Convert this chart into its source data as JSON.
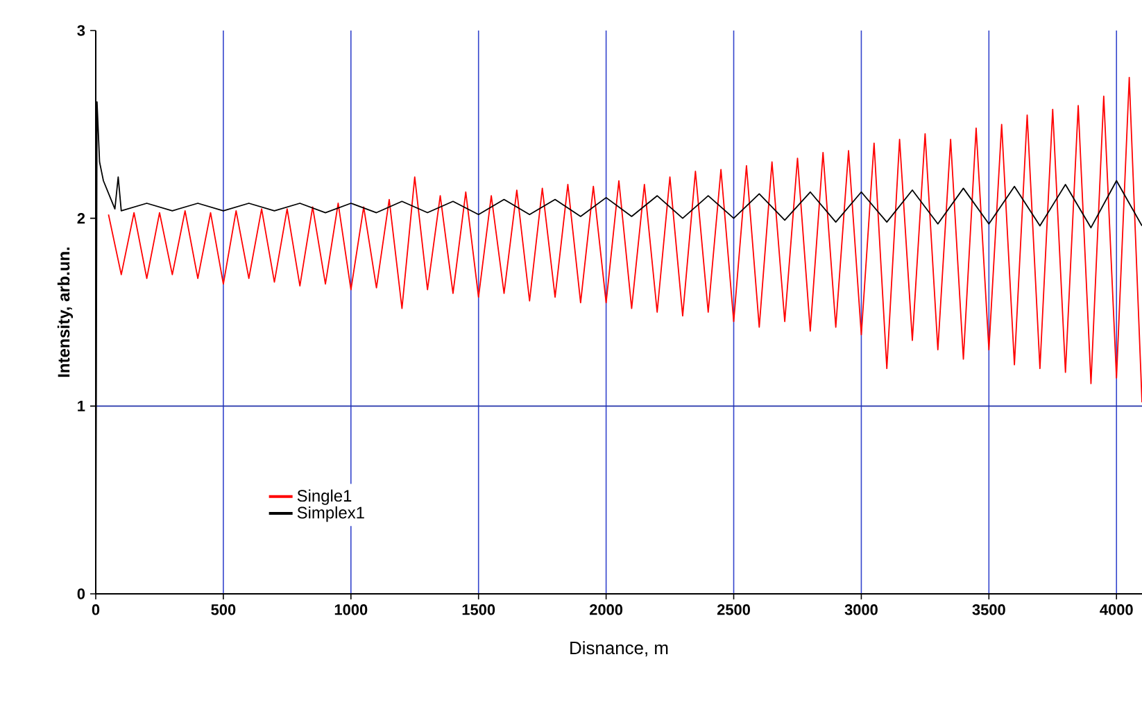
{
  "chart_data": {
    "type": "line",
    "xlabel": "Disnance, m",
    "ylabel": "Intensity, arb.un.",
    "xlim": [
      0,
      4100
    ],
    "ylim": [
      0,
      3
    ],
    "xticks": [
      0,
      500,
      1000,
      1500,
      2000,
      2500,
      3000,
      3500,
      4000
    ],
    "yticks": [
      0,
      1,
      2,
      3
    ],
    "grid": "x",
    "legend": "bottom left",
    "marker": "none",
    "line_style": "solid",
    "ref_lines": [
      {
        "axis": "y",
        "value": 1,
        "color": "#2233aa"
      }
    ],
    "series": [
      {
        "name": "Single1",
        "color": "#ff0000",
        "x": [
          50,
          100,
          150,
          200,
          250,
          300,
          350,
          400,
          450,
          500,
          550,
          600,
          650,
          700,
          750,
          800,
          850,
          900,
          950,
          1000,
          1050,
          1100,
          1150,
          1200,
          1250,
          1300,
          1350,
          1400,
          1450,
          1500,
          1550,
          1600,
          1650,
          1700,
          1750,
          1800,
          1850,
          1900,
          1950,
          2000,
          2050,
          2100,
          2150,
          2200,
          2250,
          2300,
          2350,
          2400,
          2450,
          2500,
          2550,
          2600,
          2650,
          2700,
          2750,
          2800,
          2850,
          2900,
          2950,
          3000,
          3050,
          3100,
          3150,
          3200,
          3250,
          3300,
          3350,
          3400,
          3450,
          3500,
          3550,
          3600,
          3650,
          3700,
          3750,
          3800,
          3850,
          3900,
          3950,
          4000,
          4050,
          4100
        ],
        "values": [
          2.02,
          1.7,
          2.03,
          1.68,
          2.03,
          1.7,
          2.04,
          1.68,
          2.03,
          1.65,
          2.04,
          1.68,
          2.05,
          1.66,
          2.05,
          1.64,
          2.06,
          1.65,
          2.08,
          1.62,
          2.06,
          1.63,
          2.1,
          1.52,
          2.22,
          1.62,
          2.12,
          1.6,
          2.14,
          1.58,
          2.12,
          1.6,
          2.15,
          1.56,
          2.16,
          1.58,
          2.18,
          1.55,
          2.17,
          1.55,
          2.2,
          1.52,
          2.18,
          1.5,
          2.22,
          1.48,
          2.25,
          1.5,
          2.26,
          1.45,
          2.28,
          1.42,
          2.3,
          1.45,
          2.32,
          1.4,
          2.35,
          1.42,
          2.36,
          1.38,
          2.4,
          1.2,
          2.42,
          1.35,
          2.45,
          1.3,
          2.42,
          1.25,
          2.48,
          1.3,
          2.5,
          1.22,
          2.55,
          1.2,
          2.58,
          1.18,
          2.6,
          1.12,
          2.65,
          1.15,
          2.75,
          1.02
        ]
      },
      {
        "name": "Simplex1",
        "color": "#000000",
        "x": [
          0,
          5,
          15,
          30,
          60,
          75,
          88,
          100,
          200,
          300,
          400,
          500,
          600,
          700,
          800,
          900,
          1000,
          1100,
          1200,
          1300,
          1400,
          1500,
          1600,
          1700,
          1800,
          1900,
          2000,
          2100,
          2200,
          2300,
          2400,
          2500,
          2600,
          2700,
          2800,
          2900,
          3000,
          3100,
          3200,
          3300,
          3400,
          3500,
          3600,
          3700,
          3800,
          3900,
          4000,
          4100
        ],
        "values": [
          0,
          2.62,
          2.3,
          2.2,
          2.1,
          2.05,
          2.22,
          2.04,
          2.08,
          2.04,
          2.08,
          2.04,
          2.08,
          2.04,
          2.08,
          2.03,
          2.08,
          2.03,
          2.09,
          2.03,
          2.09,
          2.02,
          2.1,
          2.02,
          2.1,
          2.01,
          2.11,
          2.01,
          2.12,
          2.0,
          2.12,
          2.0,
          2.13,
          1.99,
          2.14,
          1.98,
          2.14,
          1.98,
          2.15,
          1.97,
          2.16,
          1.97,
          2.17,
          1.96,
          2.18,
          1.95,
          2.2,
          1.96
        ]
      }
    ]
  }
}
